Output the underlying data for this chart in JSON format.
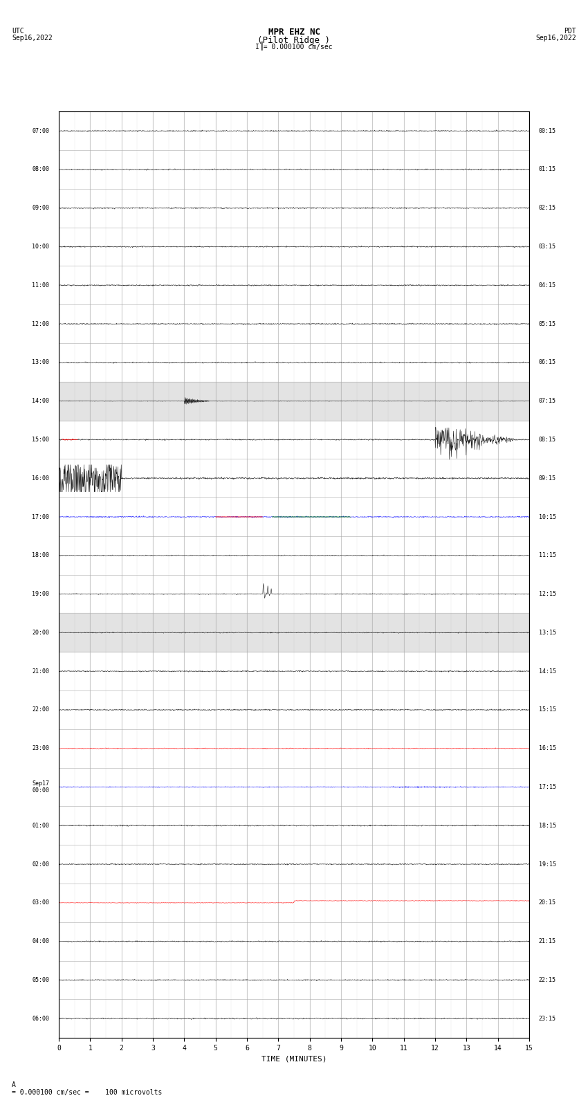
{
  "title_line1": "MPR EHZ NC",
  "title_line2": "(Pilot Ridge )",
  "scale_label": "I = 0.000100 cm/sec",
  "left_date_label": "UTC\nSep16,2022",
  "right_date_label": "PDT\nSep16,2022",
  "bottom_label": "TIME (MINUTES)",
  "bottom_note": "= 0.000100 cm/sec =    100 microvolts",
  "utc_times": [
    "07:00",
    "08:00",
    "09:00-",
    "10:00",
    "11:00",
    "12:00",
    "13:00",
    "14:00-",
    "15:00",
    "16:00",
    "17:00",
    "18:00",
    "19:00-",
    "20:00",
    "21:00",
    "22:00",
    "23:00",
    "Sep17\n00:00",
    "01:00",
    "02:00",
    "03:00",
    "04:00",
    "05:00",
    "06:00"
  ],
  "pdt_times": [
    "00:15",
    "01:15",
    "02:15",
    "03:15",
    "04:15",
    "05:15",
    "06:15",
    "07:15",
    "08:15",
    "09:15",
    "10:15",
    "11:15",
    "12:15",
    "13:15",
    "14:15",
    "15:15",
    "16:15",
    "17:15",
    "18:15",
    "19:15",
    "20:15",
    "21:15",
    "22:15",
    "23:15"
  ],
  "n_rows": 24,
  "minutes_per_row": 15,
  "fig_width": 8.5,
  "fig_height": 16.13,
  "bg_color": "#ffffff",
  "trace_color": "#000000",
  "grid_color": "#aaaaaa",
  "highlight_rows": [
    7,
    13
  ],
  "highlight_color": "#c8c8c8"
}
